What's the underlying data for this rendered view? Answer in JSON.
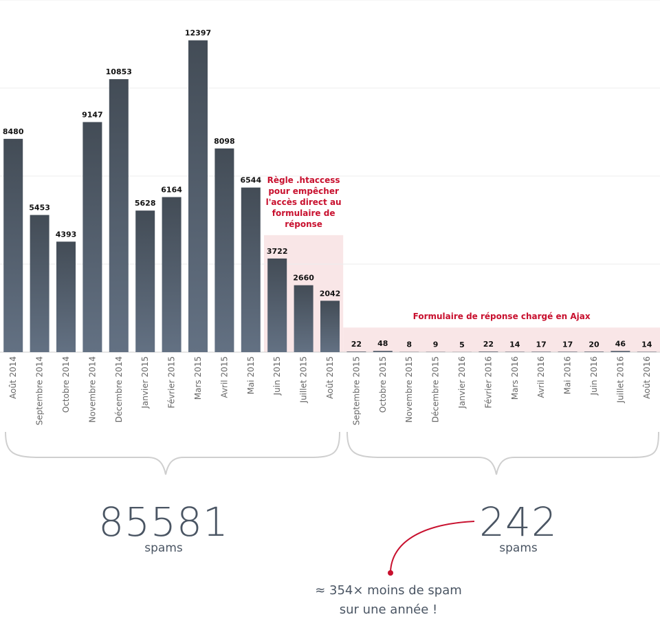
{
  "chart_data": {
    "type": "bar",
    "categories": [
      "Août 2014",
      "Septembre 2014",
      "Octobre 2014",
      "Novembre 2014",
      "Décembre 2014",
      "Janvier 2015",
      "Février 2015",
      "Mars 2015",
      "Avril 2015",
      "Mai 2015",
      "Juin 2015",
      "Juillet 2015",
      "Août 2015",
      "Septembre 2015",
      "Octobre 2015",
      "Novembre 2015",
      "Décembre 2015",
      "Janvier 2016",
      "Février 2016",
      "Mars 2016",
      "Avril 2016",
      "Mai 2016",
      "Juin 2016",
      "Juillet 2016",
      "Août 2016"
    ],
    "values": [
      8480,
      5453,
      4393,
      9147,
      10853,
      5628,
      6164,
      12397,
      8098,
      6544,
      3722,
      2660,
      2042,
      22,
      48,
      8,
      9,
      5,
      22,
      14,
      17,
      17,
      20,
      46,
      14
    ],
    "color": "#4f5a67",
    "ylim": [
      0,
      14000
    ],
    "yticks": [
      0,
      3500,
      7000,
      10500,
      14000
    ],
    "grid": true,
    "annotations": [
      {
        "text": "Règle .htaccess pour empêcher l'accès direct au formulaire de réponse",
        "from": "Juin 2015",
        "to": "Août 2015",
        "color": "#c8102e"
      },
      {
        "text": "Formulaire de réponse chargé en Ajax",
        "from": "Septembre 2015",
        "to": "Août 2016",
        "color": "#c8102e"
      }
    ],
    "totals": [
      {
        "value": 85581,
        "unit": "spams"
      },
      {
        "value": 242,
        "unit": "spams"
      }
    ],
    "comparison": [
      "≈ 354× moins de spam",
      "sur une année !"
    ]
  }
}
